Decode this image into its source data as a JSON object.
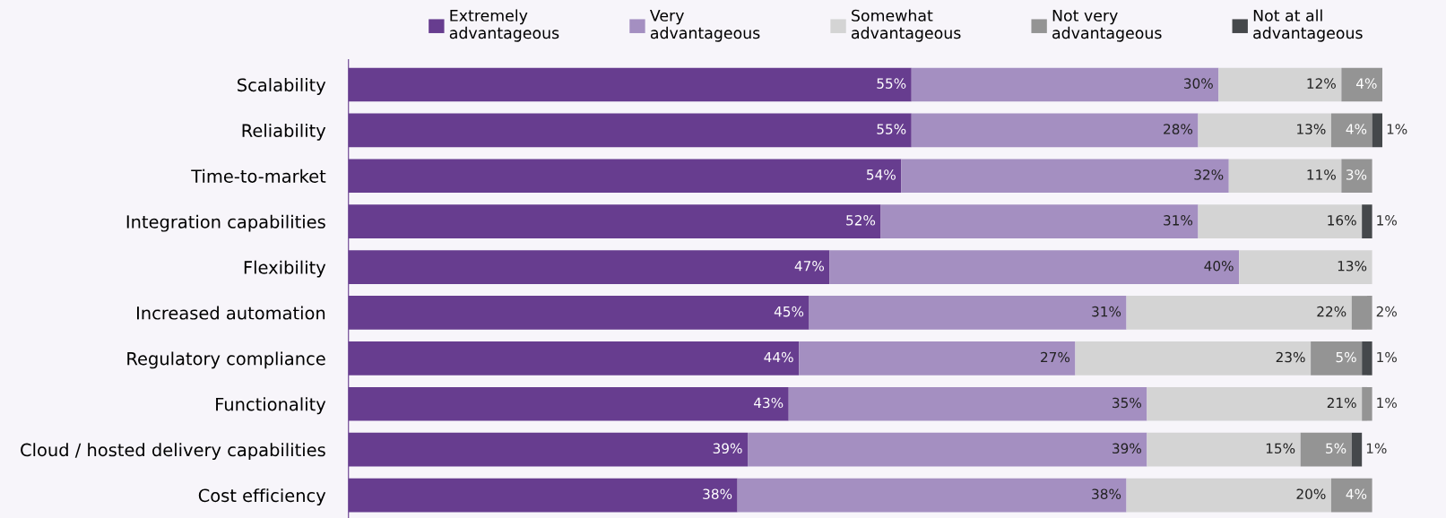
{
  "chart_data": {
    "type": "bar",
    "orientation": "horizontal",
    "stacked": true,
    "legend": "top",
    "grid": false,
    "categories": [
      "Scalability",
      "Reliability",
      "Time-to-market",
      "Integration capabilities",
      "Flexibility",
      "Increased automation",
      "Regulatory compliance",
      "Functionality",
      "Cloud / hosted delivery capabilities",
      "Cost efficiency"
    ],
    "series": [
      {
        "name": "Extremely advantageous",
        "color": "#673d8f",
        "values": [
          55,
          55,
          54,
          52,
          47,
          45,
          44,
          43,
          39,
          38
        ],
        "value_labels": [
          "55%",
          "55%",
          "54%",
          "52%",
          "47%",
          "45%",
          "44%",
          "43%",
          "39%",
          "38%"
        ]
      },
      {
        "name": "Very advantageous",
        "color": "#a48fc1",
        "values": [
          30,
          28,
          32,
          31,
          40,
          31,
          27,
          35,
          39,
          38
        ],
        "value_labels": [
          "30%",
          "28%",
          "32%",
          "31%",
          "40%",
          "31%",
          "27%",
          "35%",
          "39%",
          "38%"
        ]
      },
      {
        "name": "Somewhat advantageous",
        "color": "#d4d4d4",
        "values": [
          12,
          13,
          11,
          16,
          13,
          22,
          23,
          21,
          15,
          20
        ],
        "value_labels": [
          "12%",
          "13%",
          "11%",
          "16%",
          "13%",
          "22%",
          "23%",
          "21%",
          "15%",
          "20%"
        ]
      },
      {
        "name": "Not very advantageous",
        "color": "#949494",
        "values": [
          4,
          4,
          3,
          null,
          null,
          2,
          5,
          1,
          5,
          4
        ],
        "value_labels": [
          "4%",
          "4%",
          "3%",
          null,
          null,
          "2%",
          "5%",
          "1%",
          "5%",
          "4%"
        ]
      },
      {
        "name": "Not at all advantageous",
        "color": "#45484b",
        "values": [
          null,
          1,
          null,
          1,
          null,
          null,
          1,
          null,
          1,
          null
        ],
        "value_labels": [
          null,
          "1%",
          null,
          "1%",
          null,
          null,
          "1%",
          null,
          "1%",
          null
        ]
      }
    ]
  }
}
